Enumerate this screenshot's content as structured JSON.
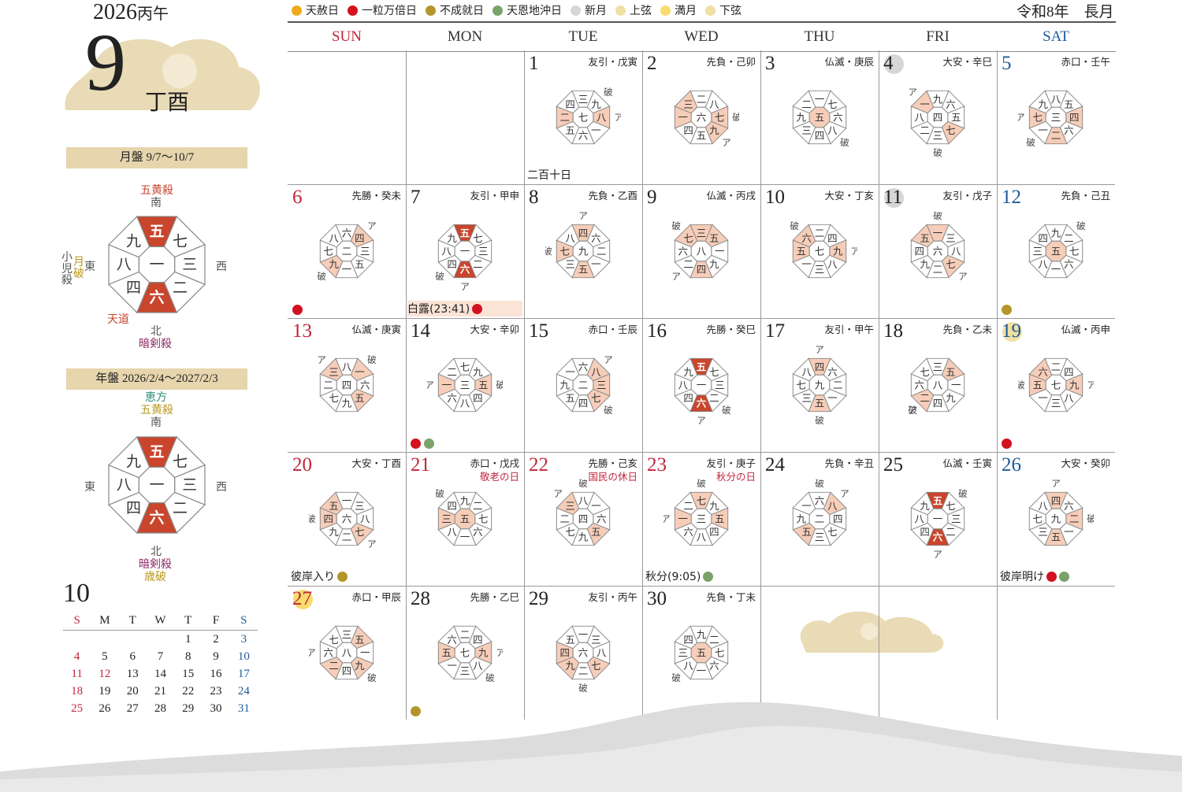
{
  "header": {
    "year": "2026",
    "year_eto": "丙午",
    "month": "9",
    "month_eto": "丁酉",
    "reiwa": "令和8年　長月"
  },
  "colors": {
    "tenshanichi": "#f0a91c",
    "ichiryu": "#d2121f",
    "fujoju": "#b2962b",
    "tenkoku": "#7aa36a",
    "newmoon": "#d6d6d6",
    "quarter": "#efe0a4",
    "fullmoon": "#f8dc6e",
    "sector_light": "#f6cdb8",
    "sector_dark": "#c9452c",
    "sunday": "#c0263a",
    "saturday": "#1d5a9a",
    "band": "#e6d5ad"
  },
  "legend": [
    {
      "label": "天赦日",
      "color_key": "tenshanichi"
    },
    {
      "label": "一粒万倍日",
      "color_key": "ichiryu"
    },
    {
      "label": "不成就日",
      "color_key": "fujoju"
    },
    {
      "label": "天恩地沖日",
      "color_key": "tenkoku"
    },
    {
      "label": "新月",
      "color_key": "newmoon"
    },
    {
      "label": "上弦",
      "color_key": "quarter"
    },
    {
      "label": "満月",
      "color_key": "fullmoon"
    },
    {
      "label": "下弦",
      "color_key": "quarter"
    }
  ],
  "weekdays": [
    "SUN",
    "MON",
    "TUE",
    "WED",
    "THU",
    "FRI",
    "SAT"
  ],
  "gepan": {
    "band": "月盤 9/7〜10/7",
    "top1": "五黄殺",
    "top2": "南",
    "east": "東",
    "west": "西",
    "north": "北",
    "bottom1": "暗剣殺",
    "left_note": "小児殺",
    "left_gold": "月破",
    "tendo": "天道",
    "grid": [
      "一",
      "五",
      "七",
      "三",
      "二",
      "六",
      "四",
      "八",
      "九"
    ]
  },
  "nenpan": {
    "band": "年盤 2026/2/4〜2027/2/3",
    "top0": "恵方",
    "top1": "五黄殺",
    "top2": "南",
    "east": "東",
    "west": "西",
    "north": "北",
    "bottom1": "暗剣殺",
    "bottom2": "歳破",
    "grid": [
      "一",
      "五",
      "七",
      "三",
      "二",
      "六",
      "四",
      "八",
      "九"
    ]
  },
  "mini_calendar": {
    "month": "10",
    "headers": [
      "S",
      "M",
      "T",
      "W",
      "T",
      "F",
      "S"
    ],
    "weeks": [
      [
        "",
        "",
        "",
        "",
        "1",
        "2",
        "3"
      ],
      [
        "4",
        "5",
        "6",
        "7",
        "8",
        "9",
        "10"
      ],
      [
        "11",
        "12",
        "13",
        "14",
        "15",
        "16",
        "17"
      ],
      [
        "18",
        "19",
        "20",
        "21",
        "22",
        "23",
        "24"
      ],
      [
        "25",
        "26",
        "27",
        "28",
        "29",
        "30",
        "31"
      ]
    ],
    "holidays": [
      "12"
    ]
  },
  "days": [
    {
      "d": "1",
      "r": "友引・戊寅",
      "g": [
        "七",
        "三",
        "九",
        "八",
        "一",
        "六",
        "五",
        "二",
        "四"
      ],
      "hl": [
        3,
        7
      ],
      "dk": [],
      "m": {
        "ア": 3,
        "破": 2
      },
      "note": "二百十日"
    },
    {
      "d": "2",
      "r": "先負・己卯",
      "g": [
        "六",
        "二",
        "八",
        "七",
        "九",
        "五",
        "四",
        "一",
        "三"
      ],
      "hl": [
        3,
        4,
        7,
        8
      ],
      "dk": [],
      "m": {
        "破": 3,
        "ア": 4
      }
    },
    {
      "d": "3",
      "r": "仏滅・庚辰",
      "g": [
        "五",
        "一",
        "七",
        "六",
        "八",
        "四",
        "三",
        "九",
        "二"
      ],
      "hl": [
        0
      ],
      "dk": [],
      "m": {
        "破": 4
      }
    },
    {
      "d": "4",
      "r": "大安・辛巳",
      "g": [
        "四",
        "九",
        "六",
        "五",
        "七",
        "三",
        "二",
        "八",
        "一"
      ],
      "hl": [
        4,
        8
      ],
      "dk": [],
      "m": {
        "ア": 8,
        "破": 5
      },
      "moon": "newmoon"
    },
    {
      "d": "5",
      "r": "赤口・壬午",
      "g": [
        "三",
        "八",
        "五",
        "四",
        "六",
        "二",
        "一",
        "七",
        "九"
      ],
      "hl": [
        3,
        5,
        7
      ],
      "dk": [],
      "m": {
        "ア": 7,
        "破": 6
      }
    },
    {
      "d": "6",
      "r": "先勝・癸未",
      "g": [
        "二",
        "六",
        "四",
        "三",
        "五",
        "一",
        "九",
        "七",
        "八"
      ],
      "hl": [
        2,
        6
      ],
      "dk": [],
      "m": {
        "ア": 2,
        "破": 6
      },
      "dots": [
        "ichiryu"
      ]
    },
    {
      "d": "7",
      "r": "友引・甲申",
      "g": [
        "一",
        "五",
        "七",
        "三",
        "二",
        "六",
        "四",
        "八",
        "九"
      ],
      "hl": [],
      "dk": [
        1,
        5
      ],
      "m": {
        "ア": 5,
        "破": 6
      },
      "note": "白露(23:41)",
      "notedot": "ichiryu",
      "notebg": true
    },
    {
      "d": "8",
      "r": "先負・乙酉",
      "g": [
        "九",
        "四",
        "六",
        "二",
        "一",
        "五",
        "三",
        "七",
        "八"
      ],
      "hl": [
        1,
        5,
        7
      ],
      "dk": [],
      "m": {
        "ア": 1,
        "破": 7
      }
    },
    {
      "d": "9",
      "r": "仏滅・丙戌",
      "g": [
        "八",
        "三",
        "五",
        "一",
        "九",
        "四",
        "二",
        "六",
        "七"
      ],
      "hl": [
        1,
        2,
        5,
        8
      ],
      "dk": [],
      "m": {
        "破": 8,
        "ア": 6
      }
    },
    {
      "d": "10",
      "r": "大安・丁亥",
      "g": [
        "七",
        "二",
        "四",
        "九",
        "八",
        "三",
        "一",
        "五",
        "六"
      ],
      "hl": [
        3,
        7,
        8
      ],
      "dk": [],
      "m": {
        "破": 8,
        "ア": 3
      }
    },
    {
      "d": "11",
      "r": "友引・戊子",
      "g": [
        "六",
        "一",
        "三",
        "八",
        "七",
        "二",
        "九",
        "四",
        "五"
      ],
      "hl": [
        1,
        4,
        8
      ],
      "dk": [],
      "m": {
        "破": 1,
        "ア": 4
      },
      "moon": "newmoon"
    },
    {
      "d": "12",
      "r": "先負・己丑",
      "g": [
        "五",
        "九",
        "二",
        "七",
        "六",
        "一",
        "八",
        "三",
        "四"
      ],
      "hl": [
        0
      ],
      "dk": [],
      "m": {
        "破": 2
      },
      "dots": [
        "fujoju"
      ]
    },
    {
      "d": "13",
      "r": "仏滅・庚寅",
      "g": [
        "四",
        "八",
        "一",
        "六",
        "五",
        "九",
        "七",
        "二",
        "三"
      ],
      "hl": [
        2,
        4,
        8
      ],
      "dk": [],
      "m": {
        "ア": 8,
        "破": 2
      }
    },
    {
      "d": "14",
      "r": "大安・辛卯",
      "g": [
        "三",
        "七",
        "九",
        "五",
        "四",
        "八",
        "六",
        "一",
        "二"
      ],
      "hl": [
        3,
        7
      ],
      "dk": [],
      "m": {
        "ア": 7,
        "破": 3
      },
      "dots": [
        "ichiryu",
        "tenkoku"
      ]
    },
    {
      "d": "15",
      "r": "赤口・壬辰",
      "g": [
        "二",
        "六",
        "八",
        "三",
        "七",
        "四",
        "五",
        "九",
        "一"
      ],
      "hl": [
        2,
        3,
        4
      ],
      "dk": [],
      "m": {
        "ア": 2,
        "破": 4
      }
    },
    {
      "d": "16",
      "r": "先勝・癸巳",
      "g": [
        "一",
        "五",
        "七",
        "三",
        "二",
        "六",
        "四",
        "八",
        "九"
      ],
      "hl": [],
      "dk": [
        1,
        5
      ],
      "m": {
        "ア": 5,
        "破": 4
      }
    },
    {
      "d": "17",
      "r": "友引・甲午",
      "g": [
        "九",
        "四",
        "六",
        "二",
        "一",
        "五",
        "三",
        "七",
        "八"
      ],
      "hl": [
        1,
        5
      ],
      "dk": [],
      "m": {
        "ア": 1,
        "破": 5
      }
    },
    {
      "d": "18",
      "r": "先負・乙未",
      "g": [
        "八",
        "三",
        "五",
        "一",
        "九",
        "四",
        "二",
        "六",
        "七"
      ],
      "hl": [
        2,
        6
      ],
      "dk": [],
      "m": {
        "ア": 6,
        "破": 6
      }
    },
    {
      "d": "19",
      "r": "仏滅・丙申",
      "g": [
        "七",
        "二",
        "四",
        "九",
        "八",
        "三",
        "一",
        "五",
        "六"
      ],
      "hl": [
        3,
        7,
        8
      ],
      "dk": [],
      "m": {
        "ア": 3,
        "破": 7
      },
      "moon": "quarter",
      "dots": [
        "ichiryu"
      ]
    },
    {
      "d": "20",
      "r": "大安・丁酉",
      "g": [
        "六",
        "一",
        "三",
        "八",
        "七",
        "二",
        "九",
        "四",
        "五"
      ],
      "hl": [
        4,
        7,
        8
      ],
      "dk": [],
      "m": {
        "破": 7,
        "ア": 4
      }
    },
    {
      "d": "21",
      "r": "赤口・戊戌",
      "h": "敬老の日",
      "g": [
        "五",
        "九",
        "二",
        "七",
        "六",
        "一",
        "八",
        "三",
        "四"
      ],
      "hl": [
        0,
        7
      ],
      "dk": [],
      "m": {
        "破": 8
      }
    },
    {
      "d": "22",
      "r": "先勝・己亥",
      "h": "国民の休日",
      "g": [
        "四",
        "八",
        "一",
        "六",
        "五",
        "九",
        "七",
        "二",
        "三"
      ],
      "hl": [
        4,
        8
      ],
      "dk": [],
      "m": {
        "破": 1,
        "ア": 8
      }
    },
    {
      "d": "23",
      "r": "友引・庚子",
      "h": "秋分の日",
      "g": [
        "三",
        "七",
        "九",
        "五",
        "四",
        "八",
        "六",
        "一",
        "二"
      ],
      "hl": [
        1,
        3,
        7
      ],
      "dk": [],
      "m": {
        "破": 1,
        "ア": 7
      },
      "note": "秋分(9:05)",
      "notedot": "tenkoku"
    },
    {
      "d": "24",
      "r": "先負・辛丑",
      "g": [
        "二",
        "六",
        "八",
        "四",
        "七",
        "三",
        "五",
        "九",
        "一"
      ],
      "hl": [
        2,
        6
      ],
      "dk": [],
      "m": {
        "破": 1,
        "ア": 2
      }
    },
    {
      "d": "25",
      "r": "仏滅・壬寅",
      "g": [
        "一",
        "五",
        "七",
        "三",
        "二",
        "六",
        "四",
        "八",
        "九"
      ],
      "hl": [],
      "dk": [
        1,
        5
      ],
      "m": {
        "破": 2,
        "ア": 5
      }
    },
    {
      "d": "26",
      "r": "大安・癸卯",
      "g": [
        "九",
        "四",
        "六",
        "二",
        "一",
        "五",
        "三",
        "七",
        "八"
      ],
      "hl": [
        1,
        3,
        5
      ],
      "dk": [],
      "m": {
        "ア": 1,
        "破": 3
      },
      "note": "彼岸明け",
      "notedot": "ichiryu",
      "notedot2": "tenkoku"
    },
    {
      "d": "27",
      "r": "赤口・甲辰",
      "g": [
        "八",
        "三",
        "五",
        "一",
        "九",
        "四",
        "二",
        "六",
        "七"
      ],
      "hl": [
        2,
        4,
        6
      ],
      "dk": [],
      "m": {
        "破": 4,
        "ア": 7
      },
      "moon": "fullmoon"
    },
    {
      "d": "28",
      "r": "先勝・乙巳",
      "g": [
        "七",
        "二",
        "四",
        "九",
        "八",
        "三",
        "一",
        "五",
        "六"
      ],
      "hl": [
        3,
        7
      ],
      "dk": [],
      "m": {
        "ア": 3,
        "破": 4
      },
      "dots": [
        "fujoju"
      ]
    },
    {
      "d": "29",
      "r": "友引・丙午",
      "g": [
        "六",
        "一",
        "三",
        "八",
        "七",
        "二",
        "九",
        "四",
        "五"
      ],
      "hl": [
        4,
        6,
        7
      ],
      "dk": [],
      "m": {
        "破": 5
      }
    },
    {
      "d": "30",
      "r": "先負・丁未",
      "g": [
        "五",
        "九",
        "二",
        "七",
        "六",
        "一",
        "八",
        "三",
        "四"
      ],
      "hl": [
        0
      ],
      "dk": [],
      "m": {
        "破": 6
      }
    }
  ],
  "higan_note": "彼岸入り",
  "higan_dot": "fujoju"
}
